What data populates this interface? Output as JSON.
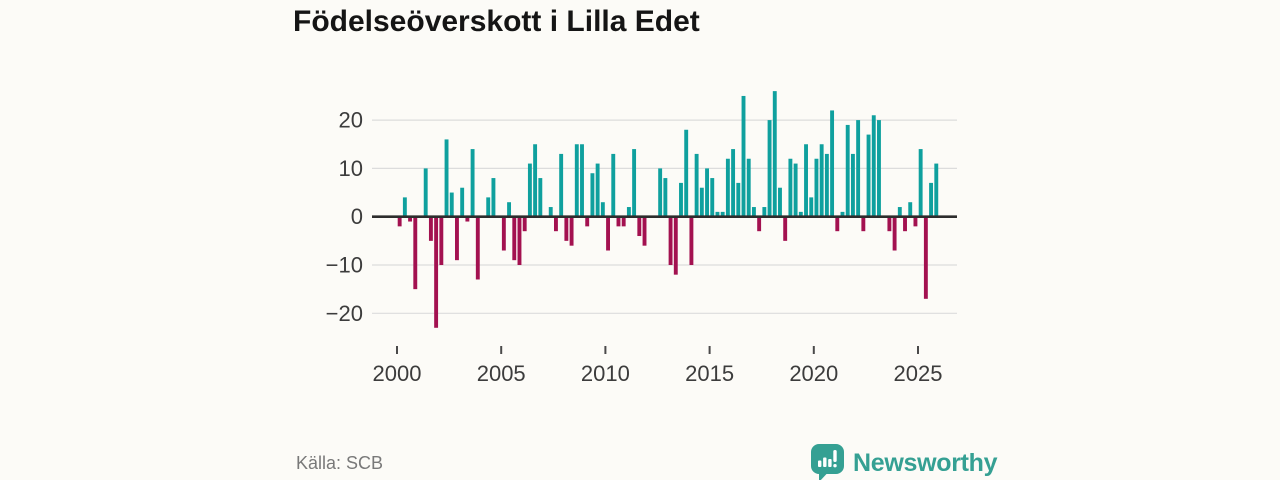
{
  "title": "Födelseöverskott i Lilla Edet",
  "source": "Källa: SCB",
  "brand": {
    "name": "Newsworthy"
  },
  "colors": {
    "positive": "#0fa09e",
    "negative": "#a31150",
    "zero_line": "#2d2d2d",
    "grid": "#dcdcdc",
    "axis_text": "#3c3c3c",
    "tick_mark": "#4a4a4a",
    "background": "#fcfbf7",
    "title_text": "#151515",
    "source_text": "#797979",
    "brand_teal": "#35a093"
  },
  "chart_data": {
    "type": "bar",
    "title": "Födelseöverskott i Lilla Edet",
    "source": "Källa: SCB",
    "period": "quarterly",
    "start_year": 2000,
    "start_quarter": 1,
    "values": [
      -2,
      4,
      -1,
      -15,
      0,
      10,
      -5,
      -23,
      -10,
      16,
      5,
      -9,
      6,
      -1,
      14,
      -13,
      0,
      4,
      8,
      0,
      -7,
      3,
      -9,
      -10,
      -3,
      11,
      15,
      8,
      0,
      2,
      -3,
      13,
      -5,
      -6,
      15,
      15,
      -2,
      9,
      11,
      3,
      -7,
      13,
      -2,
      -2,
      2,
      14,
      -4,
      -6,
      0,
      0,
      10,
      8,
      -10,
      -12,
      7,
      18,
      -10,
      13,
      6,
      10,
      8,
      1,
      1,
      12,
      14,
      7,
      25,
      12,
      2,
      -3,
      2,
      20,
      26,
      6,
      -5,
      12,
      11,
      1,
      15,
      4,
      12,
      15,
      13,
      22,
      -3,
      1,
      19,
      13,
      20,
      -3,
      17,
      21,
      20,
      0,
      -3,
      -7,
      2,
      -3,
      3,
      -2,
      14,
      -17,
      7,
      11
    ],
    "y_ticks": [
      20,
      10,
      0,
      -10,
      -20
    ],
    "x_ticks": [
      2000,
      2005,
      2010,
      2015,
      2020,
      2025
    ],
    "ylim": [
      -25,
      27
    ],
    "grid": "horizontal",
    "legend": "none"
  }
}
